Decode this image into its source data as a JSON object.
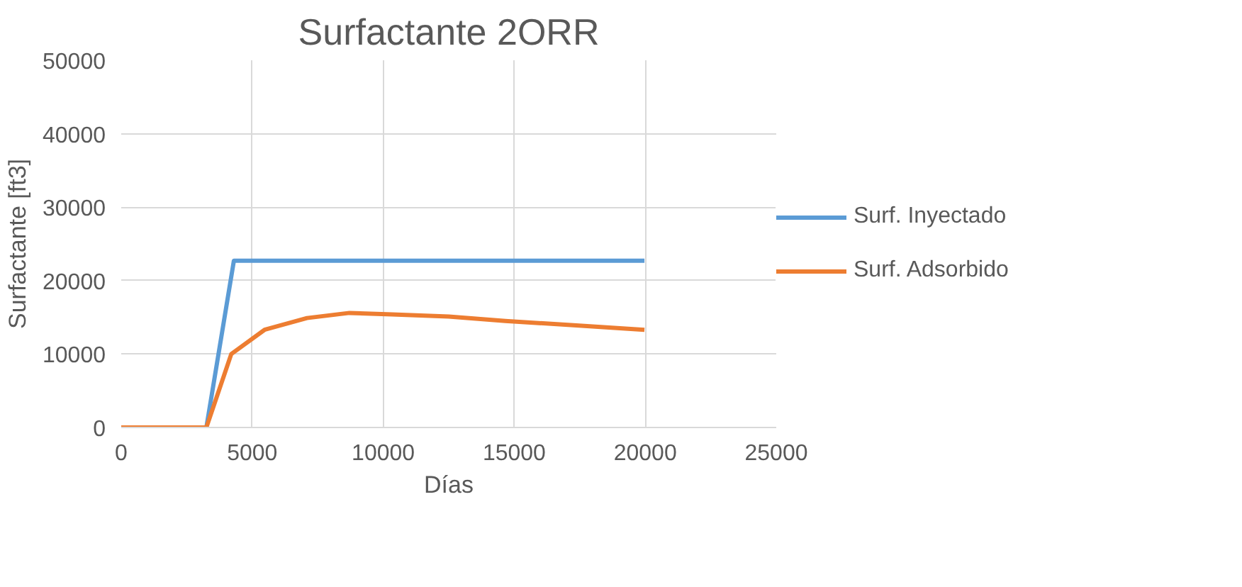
{
  "chart_data": {
    "type": "line",
    "title": "Surfactante 2ORR",
    "xlabel": "Días",
    "ylabel": "Surfactante [ft3]",
    "xlim": [
      0,
      25000
    ],
    "xticks": [
      0,
      5000,
      10000,
      15000,
      20000,
      25000
    ],
    "ylim": [
      0,
      50000
    ],
    "yticks": [
      0,
      10000,
      20000,
      30000,
      40000,
      50000
    ],
    "grid": true,
    "legend": "right",
    "marker": "none",
    "line_style": "solid",
    "series": [
      {
        "name": "Surf. Inyectado",
        "color": "#5b9bd5",
        "x": [
          0,
          3250,
          4300,
          19970
        ],
        "values": [
          0,
          0,
          22700,
          22700
        ]
      },
      {
        "name": "Surf. Adsorbido",
        "color": "#ed7d31",
        "x": [
          0,
          3250,
          4200,
          5470,
          7090,
          8710,
          10340,
          12500,
          14660,
          17370,
          19970
        ],
        "values": [
          0,
          0,
          10000,
          13300,
          14900,
          15600,
          15400,
          15100,
          14500,
          13900,
          13300
        ]
      }
    ]
  }
}
